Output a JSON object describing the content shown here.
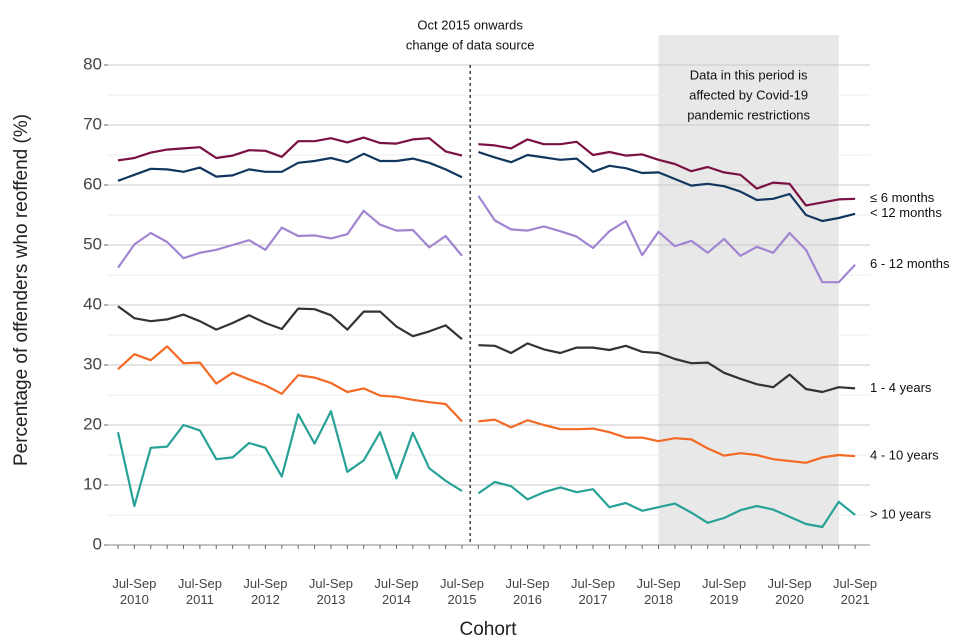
{
  "chart_data": {
    "type": "line",
    "y_label": "Percentage of offenders who reoffend (%)",
    "x_label": "Cohort",
    "ylim": [
      0,
      80
    ],
    "yticks": [
      0,
      10,
      20,
      30,
      40,
      50,
      60,
      70,
      80
    ],
    "grid": true,
    "minor_grid": true,
    "categories": [
      null,
      "Jul-Sep 2010",
      null,
      null,
      null,
      "Jul-Sep 2011",
      null,
      null,
      null,
      "Jul-Sep 2012",
      null,
      null,
      null,
      "Jul-Sep 2013",
      null,
      null,
      null,
      "Jul-Sep 2014",
      null,
      null,
      null,
      "Jul-Sep 2015",
      null,
      null,
      null,
      "Jul-Sep 2016",
      null,
      null,
      null,
      "Jul-Sep 2017",
      null,
      null,
      null,
      "Jul-Sep 2018",
      null,
      null,
      null,
      "Jul-Sep 2019",
      null,
      null,
      null,
      "Jul-Sep 2020",
      null,
      null,
      null,
      "Jul-Sep 2021"
    ],
    "data_source_change": {
      "category_index": 22,
      "lines": [
        "Oct 2015 onwards",
        "change of data source"
      ]
    },
    "shaded_period": {
      "from_index": 33,
      "to_index": 44,
      "color": "#e8e8e8",
      "lines": [
        "Data in this period is",
        "affected by Covid-19",
        "pandemic restrictions"
      ]
    },
    "series": [
      {
        "name": "≤ 6 months",
        "color": "#7b1042",
        "values": [
          64.1,
          64.5,
          65.4,
          65.9,
          66.1,
          66.3,
          64.5,
          64.9,
          65.8,
          65.7,
          64.7,
          67.3,
          67.3,
          67.8,
          67.1,
          67.9,
          67.0,
          66.9,
          67.6,
          67.8,
          65.6,
          64.9,
          66.8,
          66.6,
          66.1,
          67.6,
          66.8,
          66.8,
          67.2,
          65.0,
          65.5,
          64.9,
          65.1,
          64.2,
          63.5,
          62.3,
          63.0,
          62.1,
          61.7,
          59.4,
          60.4,
          60.2,
          56.6,
          57.1,
          57.6,
          57.7
        ]
      },
      {
        "name": "< 12 months",
        "color": "#12375e",
        "values": [
          60.7,
          61.7,
          62.7,
          62.6,
          62.2,
          62.9,
          61.4,
          61.6,
          62.6,
          62.2,
          62.2,
          63.7,
          64.0,
          64.5,
          63.8,
          65.2,
          64.0,
          64.0,
          64.4,
          63.7,
          62.6,
          61.3,
          65.5,
          64.6,
          63.8,
          65.0,
          64.6,
          64.2,
          64.4,
          62.2,
          63.2,
          62.8,
          62.0,
          62.1,
          61.0,
          59.9,
          60.2,
          59.8,
          58.9,
          57.5,
          57.7,
          58.5,
          55.0,
          54.0,
          54.5,
          55.2
        ]
      },
      {
        "name": "6 - 12 months",
        "color": "#a285d1",
        "values": [
          46.2,
          50.1,
          52.0,
          50.5,
          47.8,
          48.7,
          49.2,
          50.0,
          50.8,
          49.2,
          52.9,
          51.5,
          51.6,
          51.1,
          51.8,
          55.7,
          53.4,
          52.4,
          52.5,
          49.6,
          51.5,
          48.2,
          58.2,
          54.1,
          52.6,
          52.4,
          53.1,
          52.3,
          51.4,
          49.5,
          52.3,
          54.0,
          48.3,
          52.2,
          49.8,
          50.7,
          48.7,
          51.0,
          48.2,
          49.7,
          48.7,
          52.0,
          49.2,
          43.8,
          43.8,
          46.7
        ]
      },
      {
        "name": "1 - 4 years",
        "color": "#333333",
        "values": [
          39.8,
          37.8,
          37.3,
          37.6,
          38.4,
          37.3,
          35.9,
          37.0,
          38.3,
          37.0,
          36.0,
          39.4,
          39.3,
          38.3,
          35.9,
          38.9,
          38.9,
          36.4,
          34.8,
          35.6,
          36.6,
          34.3,
          33.3,
          33.2,
          32.0,
          33.6,
          32.6,
          32.0,
          32.9,
          32.9,
          32.5,
          33.2,
          32.2,
          32.0,
          31.0,
          30.3,
          30.4,
          28.7,
          27.7,
          26.8,
          26.3,
          28.4,
          26.0,
          25.5,
          26.3,
          26.1
        ]
      },
      {
        "name": "4 - 10 years",
        "color": "#f46a25",
        "values": [
          29.3,
          31.8,
          30.8,
          33.1,
          30.3,
          30.4,
          26.9,
          28.7,
          27.6,
          26.6,
          25.2,
          28.3,
          27.9,
          27.0,
          25.5,
          26.1,
          24.9,
          24.7,
          24.2,
          23.8,
          23.5,
          20.6,
          20.6,
          20.9,
          19.6,
          20.8,
          20.0,
          19.3,
          19.3,
          19.4,
          18.8,
          17.9,
          17.9,
          17.3,
          17.8,
          17.6,
          16.1,
          14.9,
          15.3,
          15.0,
          14.3,
          14.0,
          13.7,
          14.6,
          15.0,
          14.8
        ]
      },
      {
        "name": "> 10 years",
        "color": "#28a197",
        "values": [
          18.8,
          6.5,
          16.2,
          16.4,
          20.0,
          19.1,
          14.3,
          14.6,
          17.0,
          16.2,
          11.4,
          21.8,
          16.9,
          22.3,
          12.2,
          14.1,
          18.8,
          11.1,
          18.7,
          12.8,
          10.7,
          9.0,
          8.6,
          10.5,
          9.8,
          7.6,
          8.8,
          9.6,
          8.8,
          9.3,
          6.3,
          7.0,
          5.7,
          6.3,
          6.9,
          5.4,
          3.7,
          4.5,
          5.8,
          6.5,
          5.9,
          4.7,
          3.5,
          3.0,
          7.2,
          5.0
        ]
      }
    ]
  }
}
